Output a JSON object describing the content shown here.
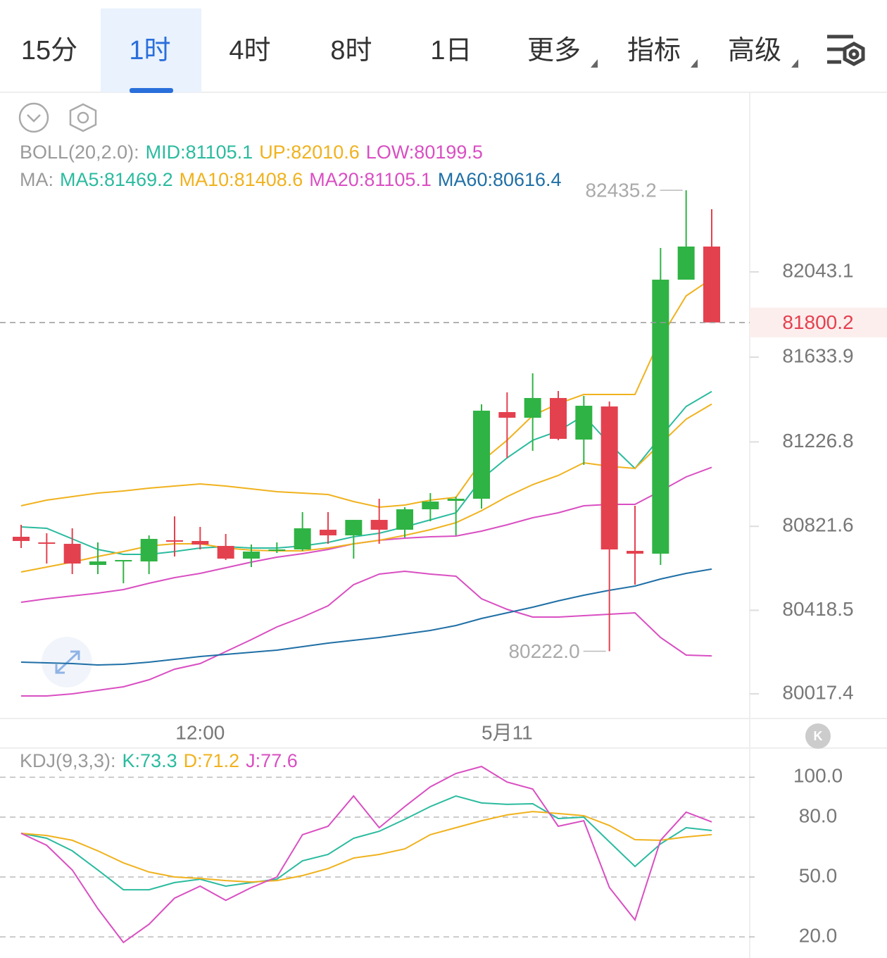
{
  "header": {
    "tabs": [
      {
        "label": "15分",
        "dropdown": false
      },
      {
        "label": "1时",
        "dropdown": false
      },
      {
        "label": "4时",
        "dropdown": false
      },
      {
        "label": "8时",
        "dropdown": false
      },
      {
        "label": "1日",
        "dropdown": false
      },
      {
        "label": "更多",
        "dropdown": true
      },
      {
        "label": "指标",
        "dropdown": true
      },
      {
        "label": "高级",
        "dropdown": true
      }
    ],
    "selected_tab": 1
  },
  "chart_data": [
    {
      "type": "candlestick",
      "up_color": "#2fb344",
      "down_color": "#e4414f",
      "legend": [
        [
          {
            "text": "BOLL(20,2.0):",
            "color": "#9a9a9a"
          },
          {
            "text": "MID:81105.1",
            "color": "#2bbb9f"
          },
          {
            "text": "UP:82010.6",
            "color": "#f0b21e"
          },
          {
            "text": "LOW:80199.5",
            "color": "#d94fc2"
          }
        ],
        [
          {
            "text": "MA:",
            "color": "#9a9a9a"
          },
          {
            "text": "MA5:81469.2",
            "color": "#2bbb9f"
          },
          {
            "text": "MA10:81408.6",
            "color": "#f0b21e"
          },
          {
            "text": "MA20:81105.1",
            "color": "#d94fc2"
          },
          {
            "text": "MA60:80616.4",
            "color": "#1f6fa6"
          }
        ]
      ],
      "categories": [
        null,
        null,
        null,
        null,
        null,
        null,
        null,
        "12:00",
        null,
        null,
        null,
        null,
        null,
        null,
        null,
        null,
        null,
        null,
        null,
        "5月11",
        null,
        null,
        null,
        null,
        null,
        null,
        null,
        null
      ],
      "open": [
        80771.5,
        80744.4,
        80737.6,
        80636.2,
        80656.5,
        80653.1,
        80754.6,
        80751.2,
        80727.5,
        80666.6,
        80707.0,
        80710.6,
        80805.3,
        80778.2,
        80852.6,
        80805.3,
        80903.4,
        80943.9,
        80954.1,
        81370.1,
        81343.0,
        81437.7,
        81238.2,
        81397.1,
        80703.8,
        80690.3,
        82005.9,
        82164.9
      ],
      "high": [
        80829.0,
        80788.4,
        80812.1,
        80744.4,
        80659.9,
        80778.2,
        80869.5,
        80818.8,
        80785.0,
        80734.3,
        80744.4,
        80889.8,
        80889.8,
        80852.6,
        80954.1,
        80913.5,
        80981.2,
        80964.2,
        81407.3,
        81464.8,
        81556.1,
        81471.5,
        81447.9,
        81420.8,
        80920.3,
        82158.1,
        82435.2,
        82344.1
      ],
      "low": [
        80717.4,
        80643.0,
        80592.2,
        80592.2,
        80548.3,
        80592.2,
        80676.8,
        80710.6,
        80659.9,
        80626.0,
        80693.7,
        80703.8,
        80737.6,
        80666.6,
        80737.6,
        80768.1,
        80845.9,
        80778.2,
        80906.7,
        81150.3,
        81184.1,
        81234.8,
        81116.4,
        80222.0,
        80541.5,
        80636.2,
        82005.9,
        81800.2
      ],
      "close": [
        80751.2,
        80737.6,
        80643.0,
        80653.1,
        80659.9,
        80761.3,
        80751.2,
        80734.3,
        80666.6,
        80700.4,
        80710.6,
        80812.1,
        80778.2,
        80852.6,
        80805.3,
        80903.4,
        80940.6,
        80954.1,
        81376.8,
        81343.0,
        81437.7,
        81241.6,
        81400.5,
        80710.6,
        80690.3,
        82005.9,
        82164.9,
        81800.2
      ],
      "lines": [
        {
          "color": "#f0b21e",
          "values": [
            80920.3,
            80947.4,
            80964.3,
            80981.2,
            80991.3,
            81004.9,
            81015.0,
            81025.2,
            81015.0,
            81001.5,
            80988.0,
            80981.2,
            80974.4,
            80940.6,
            80913.6,
            80923.7,
            80947.4,
            80960.9,
            81133.4,
            81234.8,
            81353.2,
            81410.7,
            81454.7,
            81454.7,
            81454.7,
            81725.2,
            81928.2,
            82010.6
          ]
        },
        {
          "color": "#d94fc2",
          "values": [
            80457.0,
            80473.9,
            80487.4,
            80501.0,
            80517.9,
            80548.3,
            80575.4,
            80595.7,
            80622.7,
            80649.8,
            80673.4,
            80690.3,
            80710.6,
            80737.7,
            80754.7,
            80764.8,
            80771.5,
            80774.9,
            80798.6,
            80829.0,
            80862.8,
            80886.5,
            80920.3,
            80927.1,
            80927.1,
            80991.3,
            81059.0,
            81105.1
          ]
        },
        {
          "color": "#d94fc2",
          "values": [
            80007.2,
            80007.2,
            80017.3,
            80034.2,
            80051.1,
            80085.0,
            80135.7,
            80162.8,
            80220.2,
            80277.7,
            80338.6,
            80386.0,
            80440.1,
            80541.5,
            80592.3,
            80605.8,
            80592.3,
            80582.1,
            80473.9,
            80423.2,
            80386.0,
            80386.0,
            80392.7,
            80399.5,
            80406.3,
            80287.9,
            80203.3,
            80199.5
          ]
        },
        {
          "color": "#2bbb9f",
          "values": [
            80818.9,
            80812.1,
            80761.4,
            80710.6,
            80687.0,
            80687.0,
            80700.5,
            80717.4,
            80724.2,
            80717.4,
            80717.4,
            80727.5,
            80744.5,
            80771.5,
            80788.4,
            80818.9,
            80852.7,
            80886.5,
            81048.8,
            81150.3,
            81234.8,
            81278.8,
            81353.2,
            81217.9,
            81099.6,
            81251.8,
            81397.2,
            81469.2
          ]
        },
        {
          "color": "#f0b21e",
          "values": [
            80602.4,
            80626.1,
            80649.8,
            80676.8,
            80700.5,
            80727.5,
            80737.7,
            80737.7,
            80717.4,
            80707.3,
            80703.9,
            80703.9,
            80717.4,
            80737.7,
            80754.7,
            80778.3,
            80805.3,
            80839.2,
            80896.7,
            80964.3,
            81021.8,
            81065.7,
            81126.6,
            81109.7,
            81099.6,
            81217.9,
            81336.3,
            81408.6
          ]
        },
        {
          "color": "#1f6fa6",
          "values": [
            80169.5,
            80166.1,
            80162.8,
            80156.0,
            80159.4,
            80169.5,
            80183.0,
            80196.6,
            80206.7,
            80216.9,
            80227.0,
            80243.9,
            80260.8,
            80274.4,
            80287.9,
            80304.8,
            80321.7,
            80345.4,
            80379.2,
            80406.3,
            80433.3,
            80463.8,
            80490.8,
            80514.5,
            80534.8,
            80568.6,
            80595.7,
            80616.4
          ]
        }
      ],
      "ylim": [
        79899.0,
        82875.1
      ],
      "yticks": [
        82043.1,
        81633.9,
        81226.8,
        80821.6,
        80418.5,
        80017.4
      ],
      "last_price": 81800.2,
      "max_marker": 82435.2,
      "min_marker": {
        "value": 80222.0,
        "label": "80222.0"
      }
    },
    {
      "type": "line",
      "legend": [
        [
          {
            "text": "KDJ(9,3,3):",
            "color": "#9a9a9a"
          },
          {
            "text": "K:73.3",
            "color": "#2bbb9f"
          },
          {
            "text": "D:71.2",
            "color": "#f0b21e"
          },
          {
            "text": "J:77.6",
            "color": "#d94fc2"
          }
        ]
      ],
      "series": [
        {
          "color": "#2bbb9f",
          "values": [
            71.9,
            69.4,
            63.1,
            53.5,
            43.6,
            43.6,
            47.2,
            48.9,
            45.4,
            47.2,
            48.9,
            58.1,
            61.3,
            69.4,
            72.9,
            78.9,
            85.3,
            90.6,
            87.1,
            86.4,
            86.7,
            79.3,
            80.0,
            67.6,
            55.3,
            66.6,
            74.7,
            73.3
          ]
        },
        {
          "color": "#f0b21e",
          "values": [
            71.9,
            70.8,
            68.4,
            63.1,
            57.1,
            52.5,
            50.0,
            49.3,
            48.2,
            47.5,
            48.2,
            50.7,
            54.2,
            59.5,
            61.3,
            64.1,
            71.2,
            74.7,
            78.2,
            81.1,
            82.8,
            81.8,
            80.7,
            75.8,
            68.7,
            68.4,
            70.1,
            71.2
          ]
        },
        {
          "color": "#d94fc2",
          "values": [
            71.9,
            65.9,
            53.5,
            34.1,
            17.2,
            26.3,
            39.4,
            45.4,
            38.3,
            44.7,
            50.0,
            71.2,
            75.4,
            90.6,
            74.7,
            85.3,
            95.2,
            101.9,
            105.4,
            97.6,
            94.1,
            75.4,
            78.2,
            44.7,
            28.5,
            68.4,
            82.5,
            77.6
          ]
        }
      ],
      "ylim": [
        9.4,
        114.6
      ],
      "yticks": [
        {
          "value": 100,
          "label": "100.0"
        },
        {
          "value": 80,
          "label": "80.0"
        },
        {
          "value": 50,
          "label": "50.0"
        },
        {
          "value": 20,
          "label": "20.0"
        }
      ]
    }
  ]
}
